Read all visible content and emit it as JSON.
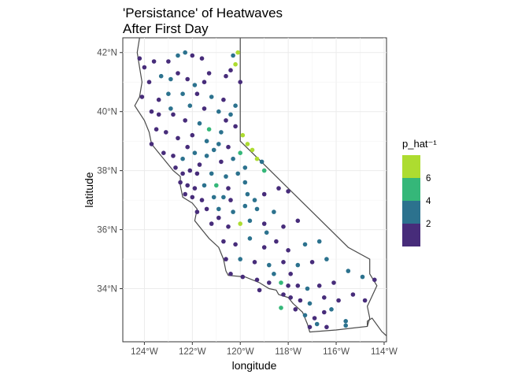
{
  "chart_data": {
    "type": "scatter",
    "title": [
      "'Persistance' of Heatwaves",
      "After First Day"
    ],
    "xlabel": "longitude",
    "ylabel": "latitude",
    "xlim": [
      -124.9,
      -113.9
    ],
    "ylim": [
      32.2,
      42.5
    ],
    "x_ticks": [
      -124,
      -122,
      -120,
      -118,
      -116,
      -114
    ],
    "x_tick_labels": [
      "124°W",
      "122°W",
      "120°W",
      "118°W",
      "116°W",
      "114°W"
    ],
    "y_ticks": [
      34,
      36,
      38,
      40,
      42
    ],
    "y_tick_labels": [
      "34°N",
      "36°N",
      "38°N",
      "40°N",
      "42°N"
    ],
    "grid": true,
    "legend": {
      "title": "p_hat⁻¹",
      "position": "right",
      "bins": [
        {
          "label": "2",
          "color": "#472c7a"
        },
        {
          "label": "4",
          "color": "#2c728e"
        },
        {
          "label": "6",
          "color": "#35b779"
        },
        {
          "label": "",
          "color": "#addc30"
        }
      ]
    },
    "colors": {
      "dark": "#472c7a",
      "blue": "#2c728e",
      "green": "#35b779",
      "lime": "#addc30"
    },
    "boundary": [
      [
        -124.2,
        42.5
      ],
      [
        -124.3,
        42.0
      ],
      [
        -124.2,
        41.5
      ],
      [
        -124.1,
        41.0
      ],
      [
        -124.2,
        40.5
      ],
      [
        -124.4,
        40.2
      ],
      [
        -124.0,
        39.7
      ],
      [
        -123.8,
        39.3
      ],
      [
        -123.7,
        38.9
      ],
      [
        -123.3,
        38.5
      ],
      [
        -123.0,
        38.2
      ],
      [
        -122.8,
        38.0
      ],
      [
        -122.5,
        37.8
      ],
      [
        -122.5,
        37.5
      ],
      [
        -122.4,
        37.1
      ],
      [
        -122.0,
        36.9
      ],
      [
        -121.8,
        36.7
      ],
      [
        -121.9,
        36.3
      ],
      [
        -121.6,
        36.0
      ],
      [
        -121.3,
        35.7
      ],
      [
        -120.9,
        35.4
      ],
      [
        -120.7,
        35.0
      ],
      [
        -120.6,
        34.6
      ],
      [
        -120.5,
        34.45
      ],
      [
        -119.8,
        34.4
      ],
      [
        -119.2,
        34.2
      ],
      [
        -118.8,
        34.0
      ],
      [
        -118.5,
        33.95
      ],
      [
        -118.4,
        33.8
      ],
      [
        -118.0,
        33.7
      ],
      [
        -117.8,
        33.5
      ],
      [
        -117.4,
        33.2
      ],
      [
        -117.2,
        32.8
      ],
      [
        -117.1,
        32.53
      ],
      [
        -116.0,
        32.6
      ],
      [
        -114.7,
        32.72
      ],
      [
        -114.7,
        32.9
      ],
      [
        -114.5,
        33.0
      ],
      [
        -114.1,
        32.55
      ],
      [
        -113.9,
        32.4
      ]
    ],
    "boundary_inland": [
      [
        -120.0,
        42.5
      ],
      [
        -120.0,
        39.0
      ],
      [
        -119.0,
        38.2
      ],
      [
        -118.0,
        37.4
      ],
      [
        -117.0,
        36.6
      ],
      [
        -115.5,
        35.4
      ],
      [
        -114.6,
        35.0
      ],
      [
        -114.6,
        34.5
      ],
      [
        -114.3,
        34.1
      ],
      [
        -114.7,
        33.4
      ],
      [
        -114.6,
        33.0
      ],
      [
        -114.7,
        32.72
      ]
    ],
    "points": [
      {
        "x": -124.2,
        "y": 41.8,
        "c": "dark"
      },
      {
        "x": -124.0,
        "y": 41.5,
        "c": "dark"
      },
      {
        "x": -123.6,
        "y": 41.7,
        "c": "dark"
      },
      {
        "x": -123.0,
        "y": 41.7,
        "c": "dark"
      },
      {
        "x": -122.6,
        "y": 41.9,
        "c": "blue"
      },
      {
        "x": -122.3,
        "y": 42.0,
        "c": "blue"
      },
      {
        "x": -122.0,
        "y": 41.9,
        "c": "dark"
      },
      {
        "x": -121.6,
        "y": 41.8,
        "c": "dark"
      },
      {
        "x": -120.3,
        "y": 41.9,
        "c": "blue"
      },
      {
        "x": -120.1,
        "y": 42.0,
        "c": "lime"
      },
      {
        "x": -120.2,
        "y": 41.6,
        "c": "lime"
      },
      {
        "x": -120.4,
        "y": 41.4,
        "c": "dark"
      },
      {
        "x": -123.8,
        "y": 41.0,
        "c": "dark"
      },
      {
        "x": -123.3,
        "y": 41.2,
        "c": "blue"
      },
      {
        "x": -122.9,
        "y": 41.1,
        "c": "blue"
      },
      {
        "x": -122.6,
        "y": 41.3,
        "c": "dark"
      },
      {
        "x": -122.2,
        "y": 41.1,
        "c": "dark"
      },
      {
        "x": -121.5,
        "y": 41.0,
        "c": "dark"
      },
      {
        "x": -120.6,
        "y": 41.2,
        "c": "dark"
      },
      {
        "x": -120.0,
        "y": 41.0,
        "c": "dark"
      },
      {
        "x": -123.0,
        "y": 40.6,
        "c": "blue"
      },
      {
        "x": -122.4,
        "y": 40.6,
        "c": "blue"
      },
      {
        "x": -121.8,
        "y": 40.6,
        "c": "dark"
      },
      {
        "x": -121.2,
        "y": 40.5,
        "c": "blue"
      },
      {
        "x": -120.7,
        "y": 40.4,
        "c": "dark"
      },
      {
        "x": -124.1,
        "y": 40.5,
        "c": "dark"
      },
      {
        "x": -123.4,
        "y": 40.4,
        "c": "dark"
      },
      {
        "x": -122.1,
        "y": 40.2,
        "c": "blue"
      },
      {
        "x": -121.5,
        "y": 40.1,
        "c": "dark"
      },
      {
        "x": -120.9,
        "y": 40.0,
        "c": "blue"
      },
      {
        "x": -120.2,
        "y": 40.2,
        "c": "blue"
      },
      {
        "x": -123.7,
        "y": 40.0,
        "c": "dark"
      },
      {
        "x": -122.8,
        "y": 39.9,
        "c": "dark"
      },
      {
        "x": -122.3,
        "y": 39.7,
        "c": "dark"
      },
      {
        "x": -121.7,
        "y": 39.6,
        "c": "blue"
      },
      {
        "x": -121.3,
        "y": 39.4,
        "c": "green"
      },
      {
        "x": -120.6,
        "y": 39.7,
        "c": "dark"
      },
      {
        "x": -120.2,
        "y": 39.5,
        "c": "dark"
      },
      {
        "x": -119.9,
        "y": 39.2,
        "c": "lime"
      },
      {
        "x": -119.7,
        "y": 38.9,
        "c": "lime"
      },
      {
        "x": -119.5,
        "y": 38.7,
        "c": "lime"
      },
      {
        "x": -119.3,
        "y": 38.4,
        "c": "lime"
      },
      {
        "x": -119.0,
        "y": 38.0,
        "c": "green"
      },
      {
        "x": -119.1,
        "y": 38.3,
        "c": "blue"
      },
      {
        "x": -123.5,
        "y": 39.4,
        "c": "dark"
      },
      {
        "x": -123.1,
        "y": 39.3,
        "c": "dark"
      },
      {
        "x": -122.6,
        "y": 39.1,
        "c": "dark"
      },
      {
        "x": -122.0,
        "y": 39.2,
        "c": "dark"
      },
      {
        "x": -121.4,
        "y": 39.0,
        "c": "blue"
      },
      {
        "x": -120.9,
        "y": 38.9,
        "c": "blue"
      },
      {
        "x": -120.5,
        "y": 38.8,
        "c": "dark"
      },
      {
        "x": -123.7,
        "y": 38.9,
        "c": "dark"
      },
      {
        "x": -123.2,
        "y": 38.6,
        "c": "dark"
      },
      {
        "x": -122.8,
        "y": 38.5,
        "c": "dark"
      },
      {
        "x": -122.4,
        "y": 38.4,
        "c": "blue"
      },
      {
        "x": -121.9,
        "y": 38.6,
        "c": "blue"
      },
      {
        "x": -121.4,
        "y": 38.5,
        "c": "blue"
      },
      {
        "x": -120.8,
        "y": 38.3,
        "c": "dark"
      },
      {
        "x": -120.3,
        "y": 38.4,
        "c": "blue"
      },
      {
        "x": -122.7,
        "y": 38.1,
        "c": "dark"
      },
      {
        "x": -122.4,
        "y": 37.9,
        "c": "dark"
      },
      {
        "x": -122.1,
        "y": 38.0,
        "c": "dark"
      },
      {
        "x": -121.8,
        "y": 37.9,
        "c": "dark"
      },
      {
        "x": -121.2,
        "y": 37.9,
        "c": "blue"
      },
      {
        "x": -120.6,
        "y": 37.8,
        "c": "blue"
      },
      {
        "x": -120.1,
        "y": 37.9,
        "c": "blue"
      },
      {
        "x": -122.5,
        "y": 37.6,
        "c": "dark"
      },
      {
        "x": -122.2,
        "y": 37.5,
        "c": "dark"
      },
      {
        "x": -121.9,
        "y": 37.4,
        "c": "dark"
      },
      {
        "x": -121.5,
        "y": 37.5,
        "c": "blue"
      },
      {
        "x": -121.0,
        "y": 37.5,
        "c": "green"
      },
      {
        "x": -120.5,
        "y": 37.4,
        "c": "dark"
      },
      {
        "x": -119.8,
        "y": 37.6,
        "c": "blue"
      },
      {
        "x": -122.0,
        "y": 37.1,
        "c": "dark"
      },
      {
        "x": -121.6,
        "y": 37.0,
        "c": "dark"
      },
      {
        "x": -121.1,
        "y": 37.1,
        "c": "blue"
      },
      {
        "x": -120.4,
        "y": 37.0,
        "c": "dark"
      },
      {
        "x": -119.7,
        "y": 37.2,
        "c": "blue"
      },
      {
        "x": -119.0,
        "y": 37.2,
        "c": "dark"
      },
      {
        "x": -118.4,
        "y": 37.4,
        "c": "dark"
      },
      {
        "x": -118.0,
        "y": 37.3,
        "c": "dark"
      },
      {
        "x": -121.8,
        "y": 36.6,
        "c": "dark"
      },
      {
        "x": -121.4,
        "y": 36.7,
        "c": "dark"
      },
      {
        "x": -120.9,
        "y": 36.7,
        "c": "blue"
      },
      {
        "x": -120.3,
        "y": 36.6,
        "c": "blue"
      },
      {
        "x": -119.8,
        "y": 36.8,
        "c": "blue"
      },
      {
        "x": -119.3,
        "y": 36.7,
        "c": "blue"
      },
      {
        "x": -118.6,
        "y": 36.6,
        "c": "blue"
      },
      {
        "x": -121.2,
        "y": 36.2,
        "c": "dark"
      },
      {
        "x": -120.5,
        "y": 36.1,
        "c": "dark"
      },
      {
        "x": -120.0,
        "y": 36.2,
        "c": "lime"
      },
      {
        "x": -119.6,
        "y": 36.3,
        "c": "blue"
      },
      {
        "x": -119.0,
        "y": 36.2,
        "c": "dark"
      },
      {
        "x": -118.2,
        "y": 36.1,
        "c": "dark"
      },
      {
        "x": -117.6,
        "y": 36.3,
        "c": "dark"
      },
      {
        "x": -120.7,
        "y": 35.6,
        "c": "dark"
      },
      {
        "x": -120.2,
        "y": 35.5,
        "c": "dark"
      },
      {
        "x": -119.6,
        "y": 35.7,
        "c": "blue"
      },
      {
        "x": -119.0,
        "y": 35.4,
        "c": "dark"
      },
      {
        "x": -118.5,
        "y": 35.6,
        "c": "dark"
      },
      {
        "x": -118.0,
        "y": 35.3,
        "c": "dark"
      },
      {
        "x": -117.3,
        "y": 35.5,
        "c": "blue"
      },
      {
        "x": -116.7,
        "y": 35.6,
        "c": "blue"
      },
      {
        "x": -120.6,
        "y": 35.0,
        "c": "dark"
      },
      {
        "x": -120.0,
        "y": 35.0,
        "c": "blue"
      },
      {
        "x": -119.4,
        "y": 34.9,
        "c": "dark"
      },
      {
        "x": -118.8,
        "y": 34.8,
        "c": "blue"
      },
      {
        "x": -118.2,
        "y": 34.9,
        "c": "dark"
      },
      {
        "x": -117.6,
        "y": 34.8,
        "c": "blue"
      },
      {
        "x": -117.0,
        "y": 34.9,
        "c": "dark"
      },
      {
        "x": -116.4,
        "y": 35.0,
        "c": "blue"
      },
      {
        "x": -120.4,
        "y": 34.5,
        "c": "dark"
      },
      {
        "x": -119.9,
        "y": 34.4,
        "c": "dark"
      },
      {
        "x": -119.3,
        "y": 34.3,
        "c": "dark"
      },
      {
        "x": -118.8,
        "y": 34.2,
        "c": "dark"
      },
      {
        "x": -118.3,
        "y": 34.2,
        "c": "green"
      },
      {
        "x": -118.0,
        "y": 34.1,
        "c": "dark"
      },
      {
        "x": -117.6,
        "y": 34.1,
        "c": "dark"
      },
      {
        "x": -117.2,
        "y": 34.0,
        "c": "blue"
      },
      {
        "x": -116.7,
        "y": 34.1,
        "c": "dark"
      },
      {
        "x": -116.1,
        "y": 34.2,
        "c": "dark"
      },
      {
        "x": -115.5,
        "y": 34.6,
        "c": "blue"
      },
      {
        "x": -114.9,
        "y": 34.4,
        "c": "blue"
      },
      {
        "x": -114.4,
        "y": 34.3,
        "c": "dark"
      },
      {
        "x": -118.2,
        "y": 33.8,
        "c": "dark"
      },
      {
        "x": -117.9,
        "y": 33.7,
        "c": "dark"
      },
      {
        "x": -117.5,
        "y": 33.6,
        "c": "dark"
      },
      {
        "x": -117.1,
        "y": 33.5,
        "c": "blue"
      },
      {
        "x": -116.5,
        "y": 33.7,
        "c": "dark"
      },
      {
        "x": -115.9,
        "y": 33.6,
        "c": "dark"
      },
      {
        "x": -115.3,
        "y": 33.8,
        "c": "dark"
      },
      {
        "x": -114.8,
        "y": 33.6,
        "c": "dark"
      },
      {
        "x": -118.3,
        "y": 33.35,
        "c": "green"
      },
      {
        "x": -117.7,
        "y": 33.3,
        "c": "dark"
      },
      {
        "x": -117.3,
        "y": 33.1,
        "c": "blue"
      },
      {
        "x": -116.9,
        "y": 33.0,
        "c": "dark"
      },
      {
        "x": -116.5,
        "y": 33.2,
        "c": "dark"
      },
      {
        "x": -117.1,
        "y": 32.7,
        "c": "dark"
      },
      {
        "x": -116.8,
        "y": 32.8,
        "c": "blue"
      },
      {
        "x": -116.4,
        "y": 32.7,
        "c": "dark"
      },
      {
        "x": -115.6,
        "y": 32.9,
        "c": "blue"
      },
      {
        "x": -115.6,
        "y": 32.75,
        "c": "blue"
      },
      {
        "x": -123.4,
        "y": 39.9,
        "c": "dark"
      },
      {
        "x": -122.9,
        "y": 40.1,
        "c": "blue"
      },
      {
        "x": -121.9,
        "y": 40.9,
        "c": "blue"
      },
      {
        "x": -121.3,
        "y": 41.3,
        "c": "dark"
      },
      {
        "x": -120.8,
        "y": 39.3,
        "c": "blue"
      },
      {
        "x": -120.4,
        "y": 39.9,
        "c": "blue"
      },
      {
        "x": -122.2,
        "y": 38.8,
        "c": "dark"
      },
      {
        "x": -121.1,
        "y": 38.7,
        "c": "blue"
      },
      {
        "x": -120.7,
        "y": 37.1,
        "c": "blue"
      },
      {
        "x": -119.4,
        "y": 37.0,
        "c": "blue"
      },
      {
        "x": -118.9,
        "y": 35.9,
        "c": "blue"
      },
      {
        "x": -117.9,
        "y": 34.5,
        "c": "dark"
      },
      {
        "x": -116.2,
        "y": 33.3,
        "c": "blue"
      },
      {
        "x": -121.7,
        "y": 38.2,
        "c": "dark"
      },
      {
        "x": -122.3,
        "y": 37.2,
        "c": "dark"
      },
      {
        "x": -120.0,
        "y": 38.6,
        "c": "green"
      },
      {
        "x": -119.8,
        "y": 38.1,
        "c": "blue"
      },
      {
        "x": -120.9,
        "y": 36.4,
        "c": "dark"
      },
      {
        "x": -119.2,
        "y": 33.95,
        "c": "dark"
      },
      {
        "x": -118.6,
        "y": 34.5,
        "c": "blue"
      }
    ]
  }
}
